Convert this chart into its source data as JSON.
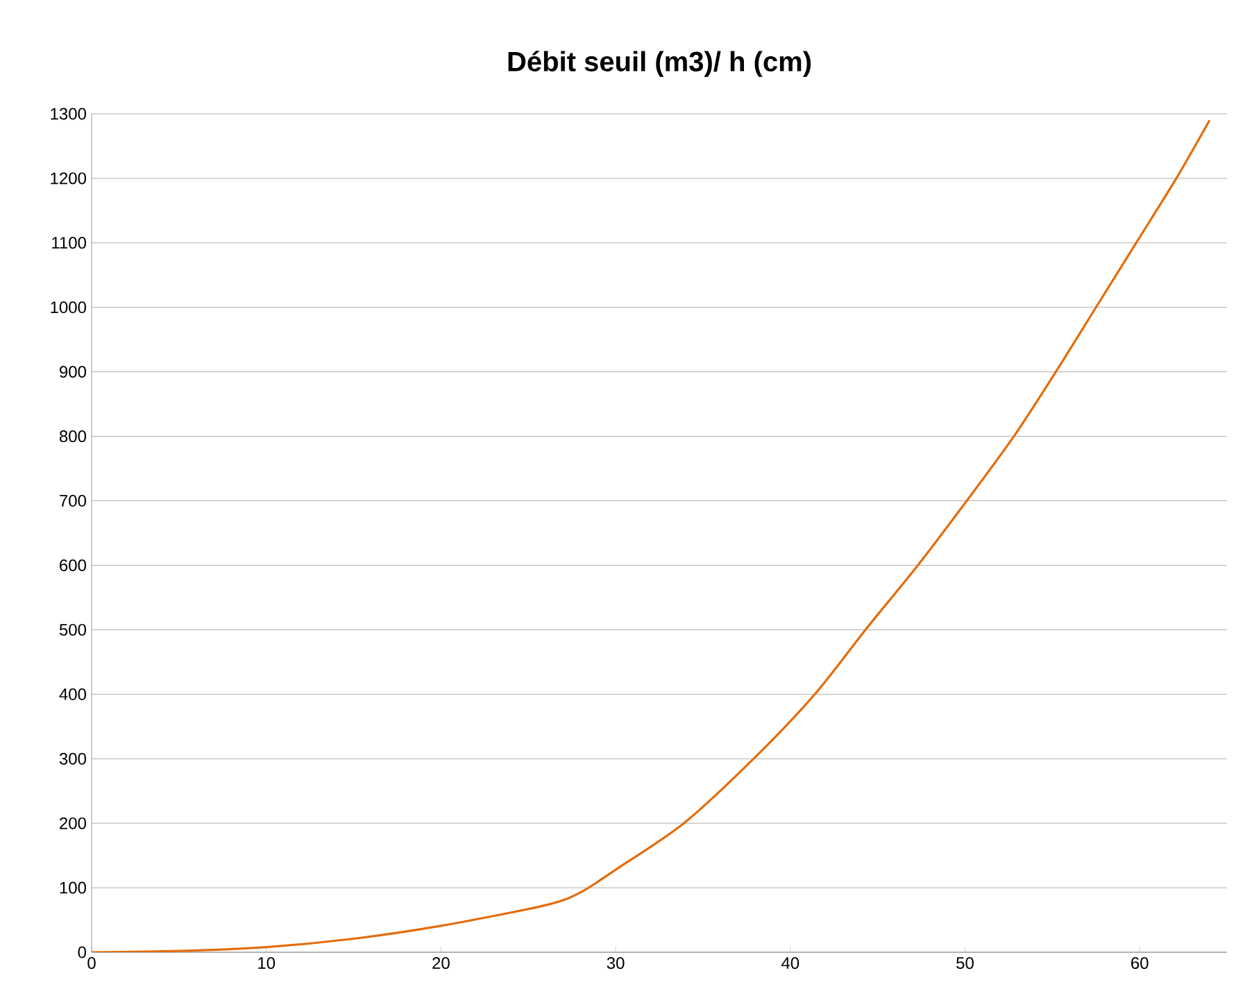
{
  "chart_data": {
    "type": "line",
    "title": "Débit seuil (m3)/ h (cm)",
    "x": [
      0,
      5,
      10,
      15,
      20,
      26,
      28,
      30,
      33.9,
      37.9,
      41.4,
      44.3,
      47.3,
      50.1,
      52.8,
      55.2,
      57.5,
      59.8,
      62.1,
      64
    ],
    "series": [
      {
        "color": "#e46c0a",
        "values": [
          0,
          2,
          8,
          21,
          41,
          73,
          93,
          128,
          200,
          300,
          400,
          500,
          600,
          700,
          800,
          900,
          1000,
          1100,
          1200,
          1290
        ]
      }
    ],
    "xlim": [
      0,
      65
    ],
    "xticks": [
      0,
      10,
      20,
      30,
      40,
      50,
      60
    ],
    "ylim": [
      0,
      1300
    ],
    "yticks": [
      0,
      100,
      200,
      300,
      400,
      500,
      600,
      700,
      800,
      900,
      1000,
      1100,
      1200,
      1300
    ],
    "grid": "y",
    "marker": "none",
    "line_style": "solid"
  }
}
